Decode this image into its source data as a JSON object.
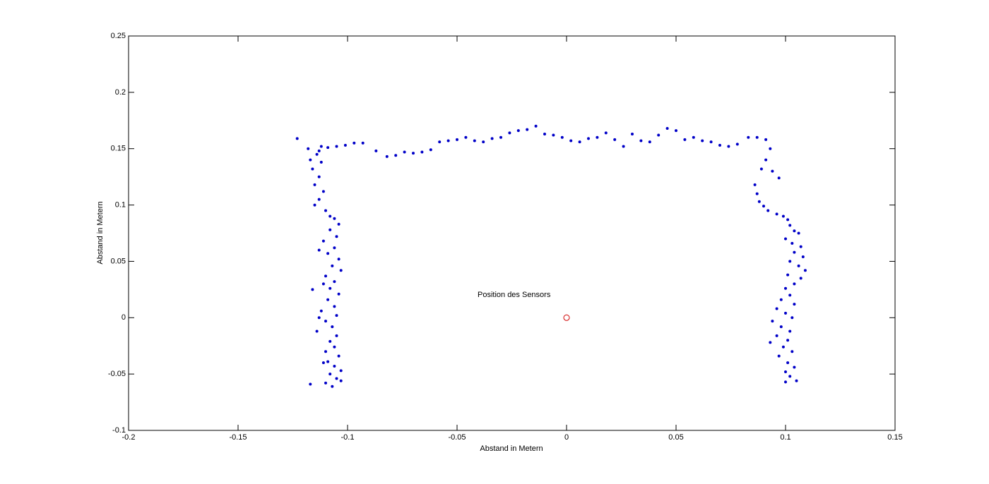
{
  "chart_data": {
    "type": "scatter",
    "xlabel": "Abstand in Metern",
    "ylabel": "Abstand in Metern",
    "annotations": [
      "Position des Sensors"
    ],
    "xlim": [
      -0.2,
      0.15
    ],
    "ylim": [
      -0.1,
      0.25
    ],
    "xticks": [
      -0.2,
      -0.15,
      -0.1,
      -0.05,
      0,
      0.05,
      0.1,
      0.15
    ],
    "yticks": [
      -0.1,
      -0.05,
      0,
      0.05,
      0.1,
      0.15,
      0.2,
      0.25
    ],
    "grid": false,
    "series": [
      {
        "color": "#0000c8",
        "marker": "dot",
        "x": [
          -0.123,
          -0.118,
          -0.113,
          -0.109,
          -0.105,
          -0.101,
          -0.097,
          -0.093,
          -0.087,
          -0.082,
          -0.078,
          -0.074,
          -0.07,
          -0.066,
          -0.062,
          -0.058,
          -0.054,
          -0.05,
          -0.046,
          -0.042,
          -0.038,
          -0.034,
          -0.03,
          -0.026,
          -0.022,
          -0.018,
          -0.014,
          -0.01,
          -0.006,
          -0.002,
          0.002,
          0.006,
          0.01,
          0.014,
          0.018,
          0.022,
          0.026,
          0.03,
          0.034,
          0.038,
          0.042,
          0.046,
          0.05,
          0.054,
          0.058,
          0.062,
          0.066,
          0.07,
          0.074,
          0.078,
          0.083,
          0.087,
          0.091,
          -0.114,
          -0.112,
          -0.116,
          -0.113,
          -0.115,
          -0.111,
          -0.113,
          -0.115,
          -0.11,
          -0.106,
          -0.104,
          -0.108,
          -0.105,
          -0.111,
          -0.106,
          -0.109,
          -0.104,
          -0.107,
          -0.103,
          -0.11,
          -0.106,
          -0.108,
          -0.116,
          -0.104,
          -0.109,
          -0.106,
          -0.112,
          -0.105,
          -0.11,
          -0.107,
          -0.114,
          -0.105,
          -0.108,
          -0.106,
          -0.11,
          -0.104,
          -0.109,
          -0.106,
          -0.103,
          -0.108,
          -0.105,
          -0.103,
          -0.11,
          -0.117,
          -0.107,
          -0.112,
          -0.117,
          -0.108,
          -0.113,
          -0.111,
          -0.113,
          -0.111,
          0.093,
          0.091,
          0.089,
          0.094,
          0.097,
          0.086,
          0.087,
          0.088,
          0.09,
          0.092,
          0.096,
          0.099,
          0.101,
          0.102,
          0.104,
          0.106,
          0.1,
          0.103,
          0.107,
          0.104,
          0.108,
          0.102,
          0.106,
          0.109,
          0.101,
          0.107,
          0.104,
          0.1,
          0.102,
          0.098,
          0.104,
          0.096,
          0.1,
          0.103,
          0.094,
          0.098,
          0.102,
          0.096,
          0.101,
          0.093,
          0.099,
          0.103,
          0.097,
          0.101,
          0.104,
          0.1,
          0.102,
          0.105,
          0.1
        ],
        "y": [
          0.159,
          0.15,
          0.148,
          0.151,
          0.152,
          0.153,
          0.155,
          0.155,
          0.148,
          0.143,
          0.144,
          0.147,
          0.146,
          0.147,
          0.149,
          0.156,
          0.157,
          0.158,
          0.16,
          0.157,
          0.156,
          0.159,
          0.16,
          0.164,
          0.166,
          0.167,
          0.17,
          0.163,
          0.162,
          0.16,
          0.157,
          0.156,
          0.159,
          0.16,
          0.164,
          0.158,
          0.152,
          0.163,
          0.157,
          0.156,
          0.162,
          0.168,
          0.166,
          0.158,
          0.16,
          0.157,
          0.156,
          0.153,
          0.152,
          0.154,
          0.16,
          0.16,
          0.158,
          0.145,
          0.138,
          0.132,
          0.125,
          0.118,
          0.112,
          0.105,
          0.1,
          0.095,
          0.088,
          0.083,
          0.078,
          0.072,
          0.068,
          0.062,
          0.057,
          0.052,
          0.046,
          0.042,
          0.037,
          0.032,
          0.026,
          0.025,
          0.021,
          0.016,
          0.01,
          0.006,
          0.002,
          -0.003,
          -0.008,
          -0.012,
          -0.016,
          -0.021,
          -0.026,
          -0.03,
          -0.034,
          -0.039,
          -0.043,
          -0.047,
          -0.05,
          -0.054,
          -0.056,
          -0.058,
          -0.059,
          -0.061,
          0.152,
          0.14,
          0.09,
          0.06,
          0.03,
          0.0,
          -0.04,
          0.15,
          0.14,
          0.132,
          0.13,
          0.124,
          0.118,
          0.11,
          0.103,
          0.099,
          0.095,
          0.092,
          0.09,
          0.087,
          0.082,
          0.077,
          0.075,
          0.07,
          0.066,
          0.063,
          0.058,
          0.054,
          0.05,
          0.046,
          0.042,
          0.038,
          0.035,
          0.03,
          0.026,
          0.02,
          0.016,
          0.012,
          0.008,
          0.004,
          0.0,
          -0.003,
          -0.008,
          -0.012,
          -0.016,
          -0.02,
          -0.022,
          -0.026,
          -0.03,
          -0.034,
          -0.04,
          -0.044,
          -0.048,
          -0.052,
          -0.056,
          -0.057
        ]
      },
      {
        "color": "#d00000",
        "marker": "circle",
        "x": [
          0
        ],
        "y": [
          0
        ]
      }
    ]
  }
}
